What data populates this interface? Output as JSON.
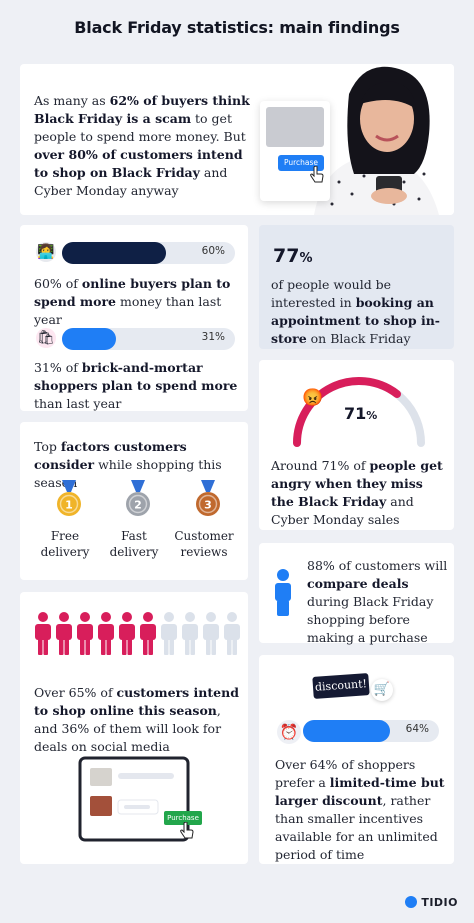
{
  "title": "Black Friday statistics: main findings",
  "hero": {
    "text_parts": [
      "As many as ",
      "62% of buyers think Black Friday is a scam",
      " to get people to spend more money. But ",
      "over 80% of customers intend to shop on Black Friday",
      " and Cyber Monday anyway"
    ],
    "purchase_label": "Purchase"
  },
  "bars": {
    "bar1": {
      "value": 0.6,
      "label": "60%",
      "color": "#0f2045",
      "text_parts": [
        "60% of ",
        "online buyers plan to spend more",
        " money than last year"
      ]
    },
    "bar2": {
      "value": 0.31,
      "label": "31%",
      "color": "#1f7ef5",
      "text_parts": [
        "31% of ",
        "brick-and-mortar shoppers",
        " plan to spend more",
        " than last year"
      ]
    }
  },
  "stat77": {
    "value": "77",
    "pct": "%",
    "text_parts": [
      "of people would be interested in ",
      "booking an appointment to shop in-store",
      " on Black Friday"
    ]
  },
  "gauge": {
    "value": 0.71,
    "label": "71",
    "pct": "%",
    "colors": {
      "active": "#d81e5b",
      "track": "#dde2ea"
    },
    "text_parts": [
      "Around 71% of ",
      "people get angry when they miss the Black Friday",
      " and Cyber Monday sales"
    ]
  },
  "factors": {
    "text_parts": [
      "Top ",
      "factors customers consider",
      " while shopping this season"
    ],
    "items": [
      {
        "label": "Free delivery",
        "rank": "1",
        "color": "#f0b429"
      },
      {
        "label": "Fast delivery",
        "rank": "2",
        "color": "#9ea3ab"
      },
      {
        "label": "Customer reviews",
        "rank": "3",
        "color": "#c0692e"
      }
    ]
  },
  "compare": {
    "text_parts": [
      "88% of customers will ",
      "compare deals",
      " during Black Friday shopping before making a purchase"
    ],
    "color": "#1f7ef5"
  },
  "people": {
    "filled": 6,
    "total": 10,
    "colors": {
      "filled": "#d81e5b",
      "empty": "#dbe1ea"
    },
    "text_parts": [
      "Over 65% of ",
      "customers intend to shop online this season",
      ", and 36% of them will look for deals on social media"
    ],
    "purchase_label": "Purchase"
  },
  "discount": {
    "tag_label": "discount!",
    "bar": {
      "value": 0.64,
      "label": "64%",
      "color": "#1f7ef5"
    },
    "text_parts": [
      "Over 64% of shoppers prefer a ",
      "limited-time but larger discount",
      ", rather than smaller incentives available for an unlimited period of time"
    ]
  },
  "logo": "TIDIO"
}
